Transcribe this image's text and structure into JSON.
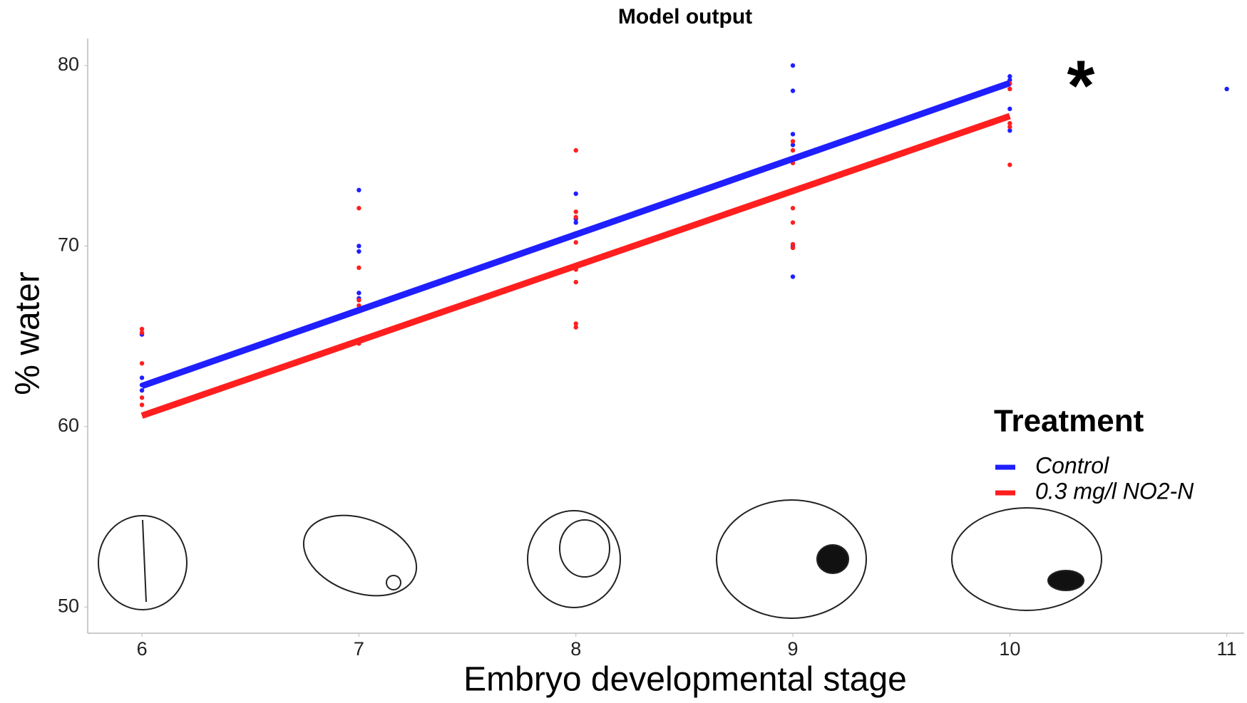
{
  "chart_data": {
    "type": "scatter",
    "title": "Model output",
    "x_label": "Embryo developmental stage",
    "y_label": "% water",
    "xlim": [
      5.75,
      11.08
    ],
    "ylim": [
      48.55,
      81.5
    ],
    "xticks": [
      6,
      7,
      8,
      9,
      10,
      11
    ],
    "yticks": [
      50,
      60,
      70,
      80
    ],
    "legend_title": "Treatment",
    "legend_position": "right",
    "annotation": "*",
    "series": [
      {
        "name": "Control",
        "color": "#1f1fff",
        "x": [
          6,
          6,
          6,
          6,
          7,
          7,
          7,
          7,
          7,
          8,
          8,
          8,
          8,
          9,
          9,
          9,
          9,
          9,
          9,
          10,
          10,
          10,
          10,
          11
        ],
        "values": [
          65.1,
          62.7,
          62.3,
          62.0,
          73.1,
          70.0,
          69.7,
          67.4,
          67.1,
          72.9,
          71.5,
          71.3,
          70.7,
          80.0,
          78.6,
          76.2,
          75.6,
          70.0,
          68.3,
          79.4,
          79.2,
          77.6,
          76.4,
          78.7
        ],
        "fit_x": [
          6,
          10
        ],
        "fit_values": [
          62.25,
          79.03
        ]
      },
      {
        "name": "0.3 mg/l NO2-N",
        "color": "#ff1f1f",
        "x": [
          6,
          6,
          6,
          6,
          6,
          7,
          7,
          7,
          7,
          7,
          8,
          8,
          8,
          8,
          8,
          8,
          8,
          8,
          9,
          9,
          9,
          9,
          9,
          9,
          9,
          10,
          10,
          10,
          10,
          10
        ],
        "values": [
          65.4,
          65.2,
          63.5,
          61.6,
          61.2,
          72.1,
          68.8,
          67.0,
          66.7,
          64.6,
          75.3,
          71.9,
          71.6,
          70.2,
          68.7,
          68.0,
          65.7,
          65.5,
          75.8,
          75.3,
          74.6,
          72.1,
          71.3,
          70.1,
          69.9,
          79.0,
          78.7,
          76.8,
          76.6,
          74.5
        ],
        "fit_x": [
          6,
          10
        ],
        "fit_values": [
          60.6,
          77.2
        ]
      }
    ]
  }
}
